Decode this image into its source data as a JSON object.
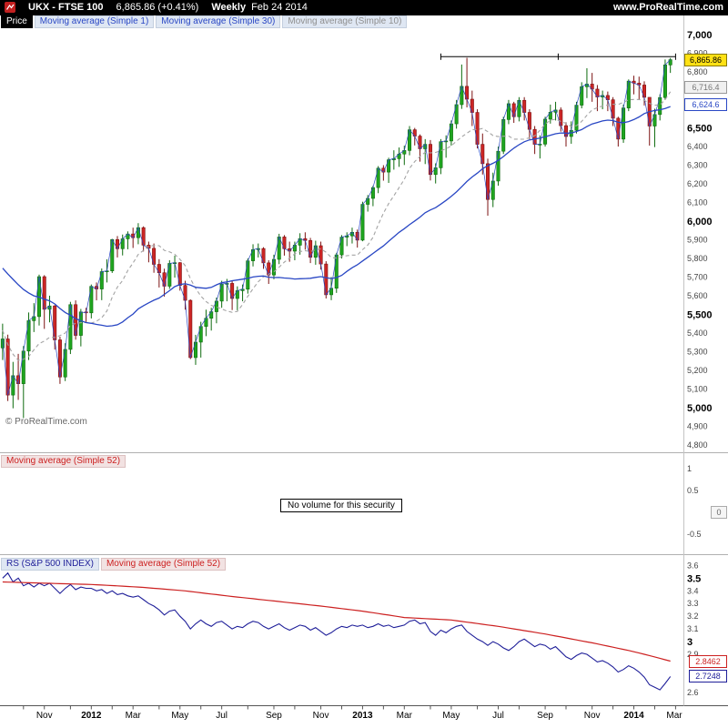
{
  "header": {
    "symbol": "UKX - FTSE 100",
    "quote": "6,865.86 (+0.41%)",
    "timeframe": "Weekly",
    "date": "Feb 24 2014",
    "site": "www.ProRealTime.com"
  },
  "price_panel": {
    "label": "Price",
    "indicators": [
      {
        "label": "Moving average (Simple 1)",
        "color": "#2947c4"
      },
      {
        "label": "Moving average (Simple 30)",
        "color": "#2947c4"
      },
      {
        "label": "Moving average (Simple 10)",
        "color": "#8f8f8f"
      }
    ],
    "watermark": "© ProRealTime.com",
    "last_price_box": {
      "text": "6,865.86",
      "value": 6865.86
    },
    "ma10_box": {
      "text": "6,716.4",
      "value": 6716.4
    },
    "ma30_box": {
      "text": "6,624.6",
      "value": 6624.6
    },
    "axis": {
      "min_label": 4800,
      "max_label": 7000,
      "step": 100,
      "bold_step": 500
    }
  },
  "volume_panel": {
    "indicators": [
      {
        "label": "Moving average (Simple 52)",
        "color": "#cc2020"
      }
    ],
    "message": "No volume for this security",
    "axis_labels": [
      1,
      0.5,
      0,
      -0.5
    ],
    "value_box": {
      "text": "0",
      "value": 0
    }
  },
  "rs_panel": {
    "indicators": [
      {
        "label": "RS (S&P 500 INDEX)",
        "color": "#1f1f99"
      },
      {
        "label": "Moving average (Simple 52)",
        "color": "#cc2020"
      }
    ],
    "axis_labels": [
      3.6,
      3.5,
      3.4,
      3.3,
      3.2,
      3.1,
      3,
      2.9,
      2.8,
      2.7,
      2.6
    ],
    "bold_labels": [
      3.5,
      3
    ],
    "ma_box": {
      "text": "2.8462",
      "value": 2.8462
    },
    "last_box": {
      "text": "2.7248",
      "value": 2.7248
    }
  },
  "x_axis": {
    "tick_weeks": [
      4,
      8,
      13,
      17,
      21,
      25,
      30,
      34,
      38,
      42,
      47,
      52,
      56,
      61,
      65,
      69,
      73,
      77,
      82,
      86,
      91,
      95,
      99,
      104,
      108,
      113,
      117,
      121,
      125,
      129
    ],
    "labels": [
      {
        "text": "Nov",
        "week": 8,
        "bold": false
      },
      {
        "text": "2012",
        "week": 17,
        "bold": true
      },
      {
        "text": "Mar",
        "week": 25,
        "bold": false
      },
      {
        "text": "May",
        "week": 34,
        "bold": false
      },
      {
        "text": "Jul",
        "week": 42,
        "bold": false
      },
      {
        "text": "Sep",
        "week": 52,
        "bold": false
      },
      {
        "text": "Nov",
        "week": 61,
        "bold": false
      },
      {
        "text": "2013",
        "week": 69,
        "bold": true
      },
      {
        "text": "Mar",
        "week": 77,
        "bold": false
      },
      {
        "text": "May",
        "week": 86,
        "bold": false
      },
      {
        "text": "Jul",
        "week": 95,
        "bold": false
      },
      {
        "text": "Sep",
        "week": 104,
        "bold": false
      },
      {
        "text": "Nov",
        "week": 113,
        "bold": false
      },
      {
        "text": "2014",
        "week": 121,
        "bold": true
      },
      {
        "text": "Mar",
        "week": 129,
        "bold": false
      }
    ]
  },
  "colors": {
    "up_fill": "#1fa51f",
    "up_stroke": "#0e6b0e",
    "down_fill": "#cc2525",
    "down_stroke": "#7c1212",
    "ma1": "#2947c4",
    "ma30": "#2947c4",
    "ma10": "#a3a3a3",
    "rs_line": "#1f1f99",
    "rs_ma": "#cc2020",
    "last_box_bg": "#ffe114",
    "header_bg": "#000000"
  },
  "chart_data": {
    "type": "candlestick",
    "symbol": "UKX - FTSE 100",
    "timeframe": "Weekly",
    "as_of": "Feb 24 2014",
    "x_range": [
      "Sep 2011",
      "Mar 2014"
    ],
    "panels": [
      {
        "name": "price",
        "type": "candlestick",
        "ylim": [
          4765,
          7025
        ],
        "first_open": 5320,
        "open_rule": "open of each week equals previous close",
        "hlc": [
          [
            5450,
            5255,
            5368
          ],
          [
            5391,
            5035,
            5067
          ],
          [
            5245,
            4996,
            5171
          ],
          [
            5288,
            5041,
            5128
          ],
          [
            5330,
            4944,
            5303
          ],
          [
            5510,
            5255,
            5466
          ],
          [
            5560,
            5405,
            5488
          ],
          [
            5713,
            5440,
            5702
          ],
          [
            5710,
            5422,
            5527
          ],
          [
            5600,
            5457,
            5545
          ],
          [
            5550,
            5311,
            5363
          ],
          [
            5380,
            5127,
            5164
          ],
          [
            5345,
            5142,
            5312
          ],
          [
            5567,
            5287,
            5552
          ],
          [
            5575,
            5364,
            5387
          ],
          [
            5529,
            5328,
            5513
          ],
          [
            5535,
            5455,
            5508
          ],
          [
            5660,
            5478,
            5650
          ],
          [
            5671,
            5575,
            5636
          ],
          [
            5746,
            5576,
            5729
          ],
          [
            5795,
            5671,
            5733
          ],
          [
            5905,
            5722,
            5901
          ],
          [
            5920,
            5805,
            5852
          ],
          [
            5928,
            5816,
            5905
          ],
          [
            5945,
            5849,
            5931
          ],
          [
            5965,
            5856,
            5911
          ],
          [
            5989,
            5876,
            5965
          ],
          [
            5972,
            5837,
            5871
          ],
          [
            5890,
            5779,
            5854
          ],
          [
            5880,
            5723,
            5768
          ],
          [
            5796,
            5644,
            5723
          ],
          [
            5745,
            5595,
            5651
          ],
          [
            5790,
            5637,
            5773
          ],
          [
            5815,
            5697,
            5777
          ],
          [
            5780,
            5627,
            5655
          ],
          [
            5680,
            5525,
            5575
          ],
          [
            5580,
            5260,
            5268
          ],
          [
            5390,
            5229,
            5351
          ],
          [
            5460,
            5268,
            5435
          ],
          [
            5525,
            5383,
            5479
          ],
          [
            5535,
            5413,
            5514
          ],
          [
            5590,
            5452,
            5571
          ],
          [
            5680,
            5535,
            5663
          ],
          [
            5690,
            5570,
            5666
          ],
          [
            5680,
            5523,
            5585
          ],
          [
            5650,
            5522,
            5627
          ],
          [
            5660,
            5570,
            5635
          ],
          [
            5800,
            5611,
            5787
          ],
          [
            5876,
            5757,
            5847
          ],
          [
            5880,
            5805,
            5853
          ],
          [
            5860,
            5744,
            5776
          ],
          [
            5790,
            5663,
            5711
          ],
          [
            5820,
            5688,
            5795
          ],
          [
            5932,
            5769,
            5915
          ],
          [
            5925,
            5815,
            5852
          ],
          [
            5890,
            5782,
            5839
          ],
          [
            5890,
            5790,
            5871
          ],
          [
            5935,
            5820,
            5906
          ],
          [
            5940,
            5847,
            5896
          ],
          [
            5910,
            5775,
            5806
          ],
          [
            5895,
            5766,
            5868
          ],
          [
            5890,
            5740,
            5770
          ],
          [
            5785,
            5585,
            5605
          ],
          [
            5700,
            5576,
            5640
          ],
          [
            5830,
            5615,
            5819
          ],
          [
            5925,
            5800,
            5914
          ],
          [
            5940,
            5866,
            5921
          ],
          [
            5965,
            5880,
            5940
          ],
          [
            5955,
            5858,
            5898
          ],
          [
            6104,
            5892,
            6090
          ],
          [
            6140,
            6051,
            6122
          ],
          [
            6190,
            6080,
            6180
          ],
          [
            6295,
            6150,
            6284
          ],
          [
            6300,
            6217,
            6263
          ],
          [
            6340,
            6205,
            6329
          ],
          [
            6380,
            6276,
            6335
          ],
          [
            6395,
            6291,
            6360
          ],
          [
            6405,
            6301,
            6379
          ],
          [
            6510,
            6353,
            6490
          ],
          [
            6500,
            6406,
            6456
          ],
          [
            6465,
            6319,
            6388
          ],
          [
            6440,
            6306,
            6412
          ],
          [
            6435,
            6218,
            6250
          ],
          [
            6310,
            6202,
            6286
          ],
          [
            6440,
            6252,
            6426
          ],
          [
            6460,
            6340,
            6430
          ],
          [
            6540,
            6405,
            6522
          ],
          [
            6650,
            6496,
            6625
          ],
          [
            6840,
            6602,
            6723
          ],
          [
            6876,
            6610,
            6654
          ],
          [
            6700,
            6510,
            6583
          ],
          [
            6600,
            6390,
            6412
          ],
          [
            6470,
            6250,
            6308
          ],
          [
            6335,
            6029,
            6116
          ],
          [
            6260,
            6075,
            6215
          ],
          [
            6400,
            6190,
            6375
          ],
          [
            6560,
            6360,
            6545
          ],
          [
            6650,
            6520,
            6630
          ],
          [
            6640,
            6527,
            6560
          ],
          [
            6665,
            6535,
            6648
          ],
          [
            6665,
            6540,
            6583
          ],
          [
            6600,
            6440,
            6492
          ],
          [
            6510,
            6360,
            6412
          ],
          [
            6460,
            6336,
            6413
          ],
          [
            6560,
            6400,
            6547
          ],
          [
            6625,
            6523,
            6584
          ],
          [
            6640,
            6540,
            6596
          ],
          [
            6610,
            6480,
            6512
          ],
          [
            6530,
            6400,
            6454
          ],
          [
            6535,
            6415,
            6487
          ],
          [
            6640,
            6470,
            6622
          ],
          [
            6745,
            6605,
            6721
          ],
          [
            6820,
            6660,
            6735
          ],
          [
            6795,
            6640,
            6708
          ],
          [
            6730,
            6590,
            6666
          ],
          [
            6700,
            6600,
            6674
          ],
          [
            6695,
            6590,
            6651
          ],
          [
            6665,
            6510,
            6552
          ],
          [
            6560,
            6400,
            6440
          ],
          [
            6625,
            6420,
            6607
          ],
          [
            6760,
            6590,
            6751
          ],
          [
            6780,
            6680,
            6740
          ],
          [
            6775,
            6650,
            6730
          ],
          [
            6750,
            6620,
            6664
          ],
          [
            6585,
            6405,
            6510
          ],
          [
            6603,
            6397,
            6572
          ],
          [
            6680,
            6540,
            6663
          ],
          [
            6867,
            6650,
            6838
          ],
          [
            6875,
            6795,
            6865.86
          ]
        ],
        "ma_warmup_closes": [
          5950,
          6000,
          6040,
          5990,
          6060,
          6020,
          5960,
          5905,
          5870,
          5810,
          5860,
          5900,
          5950,
          5990,
          5930,
          5860,
          5800,
          5770,
          5820,
          5850,
          5900,
          5820,
          5700,
          5450,
          5247,
          5320,
          5130,
          5365,
          5400,
          5340
        ],
        "overlays": [
          {
            "name": "Moving average (Simple 1)",
            "period": 1
          },
          {
            "name": "Moving average (Simple 30)",
            "period": 30
          },
          {
            "name": "Moving average (Simple 10)",
            "period": 10
          }
        ],
        "drawing": {
          "type": "horizontal-segment",
          "price": 6882,
          "from_week": 84,
          "to_week": 129
        }
      },
      {
        "name": "volume",
        "type": "none",
        "message": "No volume for this security",
        "ylim": [
          -0.9,
          1.3
        ]
      },
      {
        "name": "relative-strength",
        "type": "line",
        "ylim": [
          2.52,
          3.66
        ],
        "values": [
          3.5,
          3.54,
          3.47,
          3.5,
          3.44,
          3.46,
          3.43,
          3.46,
          3.44,
          3.46,
          3.42,
          3.38,
          3.42,
          3.45,
          3.41,
          3.43,
          3.42,
          3.42,
          3.4,
          3.41,
          3.38,
          3.4,
          3.37,
          3.38,
          3.36,
          3.35,
          3.36,
          3.33,
          3.3,
          3.28,
          3.25,
          3.21,
          3.24,
          3.25,
          3.2,
          3.16,
          3.1,
          3.14,
          3.17,
          3.14,
          3.12,
          3.15,
          3.16,
          3.13,
          3.1,
          3.12,
          3.11,
          3.14,
          3.16,
          3.15,
          3.12,
          3.1,
          3.12,
          3.14,
          3.11,
          3.09,
          3.11,
          3.13,
          3.12,
          3.09,
          3.11,
          3.08,
          3.05,
          3.07,
          3.1,
          3.12,
          3.11,
          3.13,
          3.12,
          3.13,
          3.11,
          3.12,
          3.14,
          3.12,
          3.13,
          3.11,
          3.12,
          3.13,
          3.16,
          3.17,
          3.14,
          3.15,
          3.08,
          3.05,
          3.09,
          3.07,
          3.1,
          3.12,
          3.13,
          3.08,
          3.05,
          3.02,
          3.0,
          2.97,
          3.0,
          2.98,
          2.95,
          2.93,
          2.96,
          3.0,
          3.02,
          2.99,
          2.96,
          2.98,
          2.97,
          2.94,
          2.96,
          2.92,
          2.88,
          2.86,
          2.89,
          2.91,
          2.9,
          2.87,
          2.84,
          2.85,
          2.83,
          2.8,
          2.76,
          2.78,
          2.81,
          2.79,
          2.76,
          2.72,
          2.66,
          2.64,
          2.62,
          2.67,
          2.7248
        ],
        "ma52_anchors": [
          [
            0,
            3.47
          ],
          [
            8,
            3.46
          ],
          [
            17,
            3.45
          ],
          [
            26,
            3.43
          ],
          [
            35,
            3.4
          ],
          [
            43,
            3.36
          ],
          [
            52,
            3.32
          ],
          [
            61,
            3.28
          ],
          [
            69,
            3.24
          ],
          [
            77,
            3.19
          ],
          [
            86,
            3.17
          ],
          [
            95,
            3.12
          ],
          [
            104,
            3.06
          ],
          [
            113,
            2.99
          ],
          [
            120,
            2.93
          ],
          [
            124,
            2.89
          ],
          [
            128,
            2.8462
          ]
        ]
      }
    ]
  }
}
